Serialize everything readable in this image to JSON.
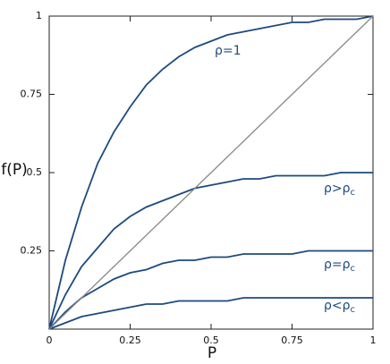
{
  "chart_data": {
    "type": "line",
    "xlabel": "P",
    "ylabel": "f(P)",
    "x": [
      0,
      0.05,
      0.1,
      0.15,
      0.2,
      0.25,
      0.3,
      0.35,
      0.4,
      0.45,
      0.5,
      0.55,
      0.6,
      0.65,
      0.7,
      0.75,
      0.8,
      0.85,
      0.9,
      0.95,
      1
    ],
    "series": [
      {
        "name": "ρ=1",
        "color": "#1d4a7e",
        "values": [
          0,
          0.22,
          0.39,
          0.53,
          0.63,
          0.71,
          0.78,
          0.83,
          0.87,
          0.9,
          0.92,
          0.94,
          0.95,
          0.96,
          0.97,
          0.98,
          0.98,
          0.99,
          0.99,
          0.99,
          1
        ]
      },
      {
        "name": "ρ>ρ",
        "name_sub": "c",
        "color": "#1d4a7e",
        "values": [
          0,
          0.11,
          0.2,
          0.26,
          0.32,
          0.36,
          0.39,
          0.41,
          0.43,
          0.45,
          0.46,
          0.47,
          0.48,
          0.48,
          0.49,
          0.49,
          0.49,
          0.49,
          0.5,
          0.5,
          0.5
        ]
      },
      {
        "name": "ρ=ρ",
        "name_sub": "c",
        "color": "#1d4a7e",
        "values": [
          0,
          0.055,
          0.1,
          0.13,
          0.16,
          0.18,
          0.19,
          0.21,
          0.22,
          0.22,
          0.23,
          0.23,
          0.24,
          0.24,
          0.24,
          0.24,
          0.25,
          0.25,
          0.25,
          0.25,
          0.25
        ]
      },
      {
        "name": "ρ<ρ",
        "name_sub": "c",
        "color": "#1d4a7e",
        "values": [
          0,
          0.02,
          0.04,
          0.05,
          0.06,
          0.07,
          0.08,
          0.08,
          0.09,
          0.09,
          0.09,
          0.09,
          0.1,
          0.1,
          0.1,
          0.1,
          0.1,
          0.1,
          0.1,
          0.1,
          0.1
        ]
      },
      {
        "color": "#8a8a8a",
        "values": [
          0,
          0.05,
          0.1,
          0.15,
          0.2,
          0.25,
          0.3,
          0.35,
          0.4,
          0.45,
          0.5,
          0.55,
          0.6,
          0.65,
          0.7,
          0.75,
          0.8,
          0.85,
          0.9,
          0.95,
          1
        ]
      }
    ],
    "xlim": [
      0,
      1
    ],
    "ylim": [
      0,
      1
    ],
    "xticks": [
      0,
      0.25,
      0.5,
      0.75,
      1
    ],
    "yticks": [
      0.25,
      0.5,
      0.75,
      1
    ]
  }
}
